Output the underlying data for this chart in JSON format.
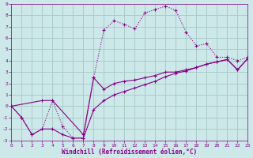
{
  "xlabel": "Windchill (Refroidissement éolien,°C)",
  "background_color": "#cce8e8",
  "grid_color": "#aacccc",
  "line_color": "#880088",
  "xlim": [
    0,
    23
  ],
  "ylim": [
    -3,
    9
  ],
  "xticks": [
    0,
    1,
    2,
    3,
    4,
    5,
    6,
    7,
    8,
    9,
    10,
    11,
    12,
    13,
    14,
    15,
    16,
    17,
    18,
    19,
    20,
    21,
    22,
    23
  ],
  "yticks": [
    -3,
    -2,
    -1,
    0,
    1,
    2,
    3,
    4,
    5,
    6,
    7,
    8,
    9
  ],
  "line1_x": [
    0,
    1,
    2,
    3,
    4,
    5,
    6,
    7,
    8,
    9,
    10,
    11,
    12,
    13,
    14,
    15,
    16,
    17,
    18,
    19,
    20,
    21,
    22,
    23
  ],
  "line1_y": [
    0,
    -1,
    -2.5,
    -2,
    -2,
    -2.5,
    -2.8,
    -2.8,
    -0.3,
    0.5,
    1.0,
    1.3,
    1.6,
    1.9,
    2.2,
    2.6,
    2.9,
    3.1,
    3.4,
    3.7,
    3.9,
    4.1,
    3.2,
    4.2
  ],
  "line2_x": [
    0,
    1,
    2,
    3,
    4,
    5,
    6,
    7,
    8,
    9,
    10,
    11,
    12,
    13,
    14,
    15,
    16,
    17,
    18,
    19,
    20,
    21,
    22,
    23
  ],
  "line2_y": [
    0,
    -1,
    -2.5,
    -2,
    0.5,
    -1.8,
    -2.8,
    -2.8,
    2.5,
    6.7,
    7.5,
    7.2,
    6.8,
    8.2,
    8.5,
    8.8,
    8.4,
    6.5,
    5.3,
    5.5,
    4.3,
    4.3,
    4.0,
    4.3
  ],
  "line3_x": [
    0,
    3,
    4,
    7,
    8,
    9,
    10,
    11,
    12,
    13,
    14,
    15,
    16,
    17,
    18,
    19,
    20,
    21,
    22,
    23
  ],
  "line3_y": [
    0,
    0.5,
    0.5,
    -2.5,
    2.5,
    1.5,
    2.0,
    2.2,
    2.3,
    2.5,
    2.7,
    3.0,
    3.0,
    3.2,
    3.4,
    3.7,
    3.9,
    4.1,
    3.2,
    4.2
  ],
  "font_size_tick": 4.5,
  "font_size_label": 5.5
}
